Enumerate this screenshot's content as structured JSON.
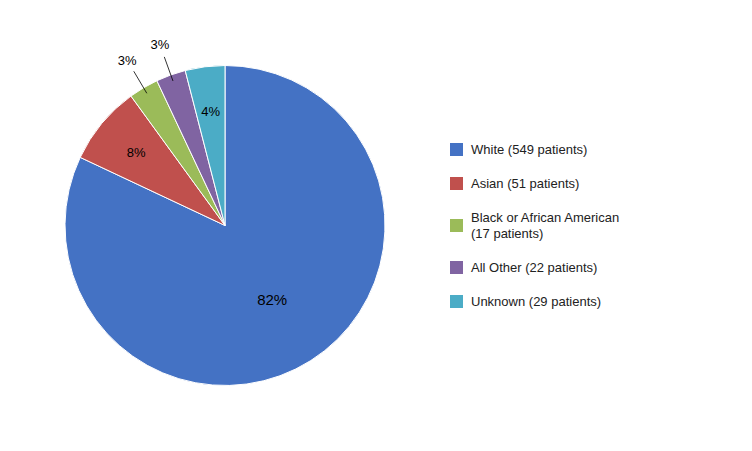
{
  "chart_data": {
    "type": "pie",
    "categories": [
      "White (549 patients)",
      "Asian (51 patients)",
      "Black or African American\n(17 patients)",
      "All Other (22 patients)",
      "Unknown (29 patients)"
    ],
    "values": [
      82,
      8,
      3,
      3,
      4
    ],
    "value_labels": [
      "82%",
      "8%",
      "3%",
      "3%",
      "4%"
    ],
    "colors": [
      "#4472C4",
      "#C0504D",
      "#9BBB59",
      "#8064A2",
      "#4BACC6"
    ],
    "data_labels": true,
    "legend": "right"
  }
}
